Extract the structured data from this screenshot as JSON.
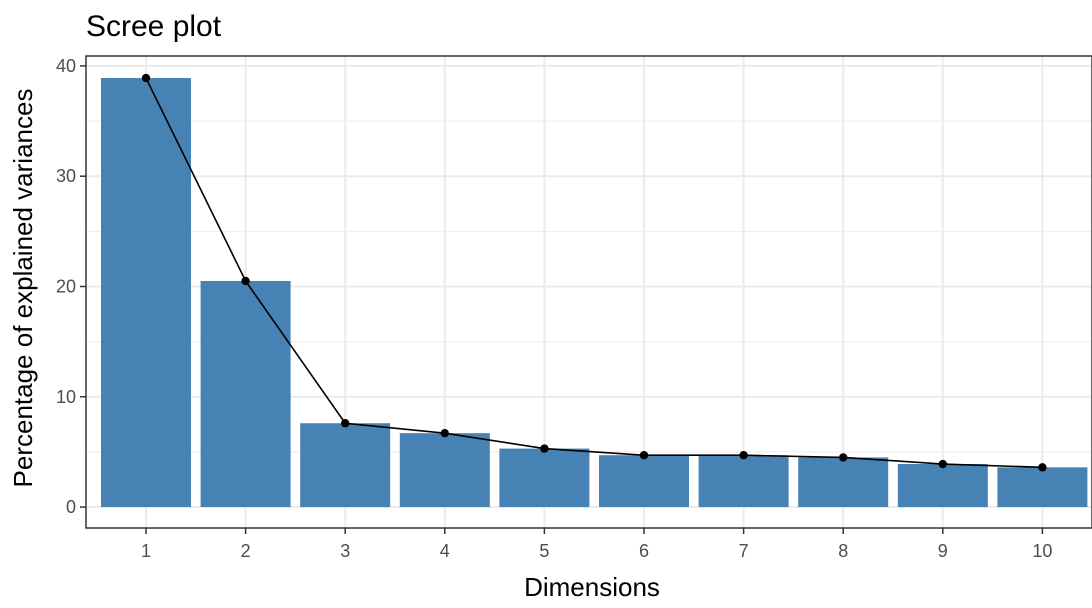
{
  "chart_data": {
    "type": "bar",
    "title": "Scree plot",
    "xlabel": "Dimensions",
    "ylabel": "Percentage of explained variances",
    "categories": [
      "1",
      "2",
      "3",
      "4",
      "5",
      "6",
      "7",
      "8",
      "9",
      "10"
    ],
    "values": [
      38.9,
      20.5,
      7.6,
      6.7,
      5.3,
      4.7,
      4.7,
      4.5,
      3.9,
      3.6
    ],
    "line_overlay": true,
    "ylim": [
      -1.9,
      40.9
    ],
    "yticks": [
      0,
      10,
      20,
      30,
      40
    ],
    "grid": true,
    "legend": "none",
    "colors": {
      "bar": "#4682b4",
      "line": "#000000",
      "grid": "#ebebeb",
      "panel_border": "#333333"
    }
  }
}
